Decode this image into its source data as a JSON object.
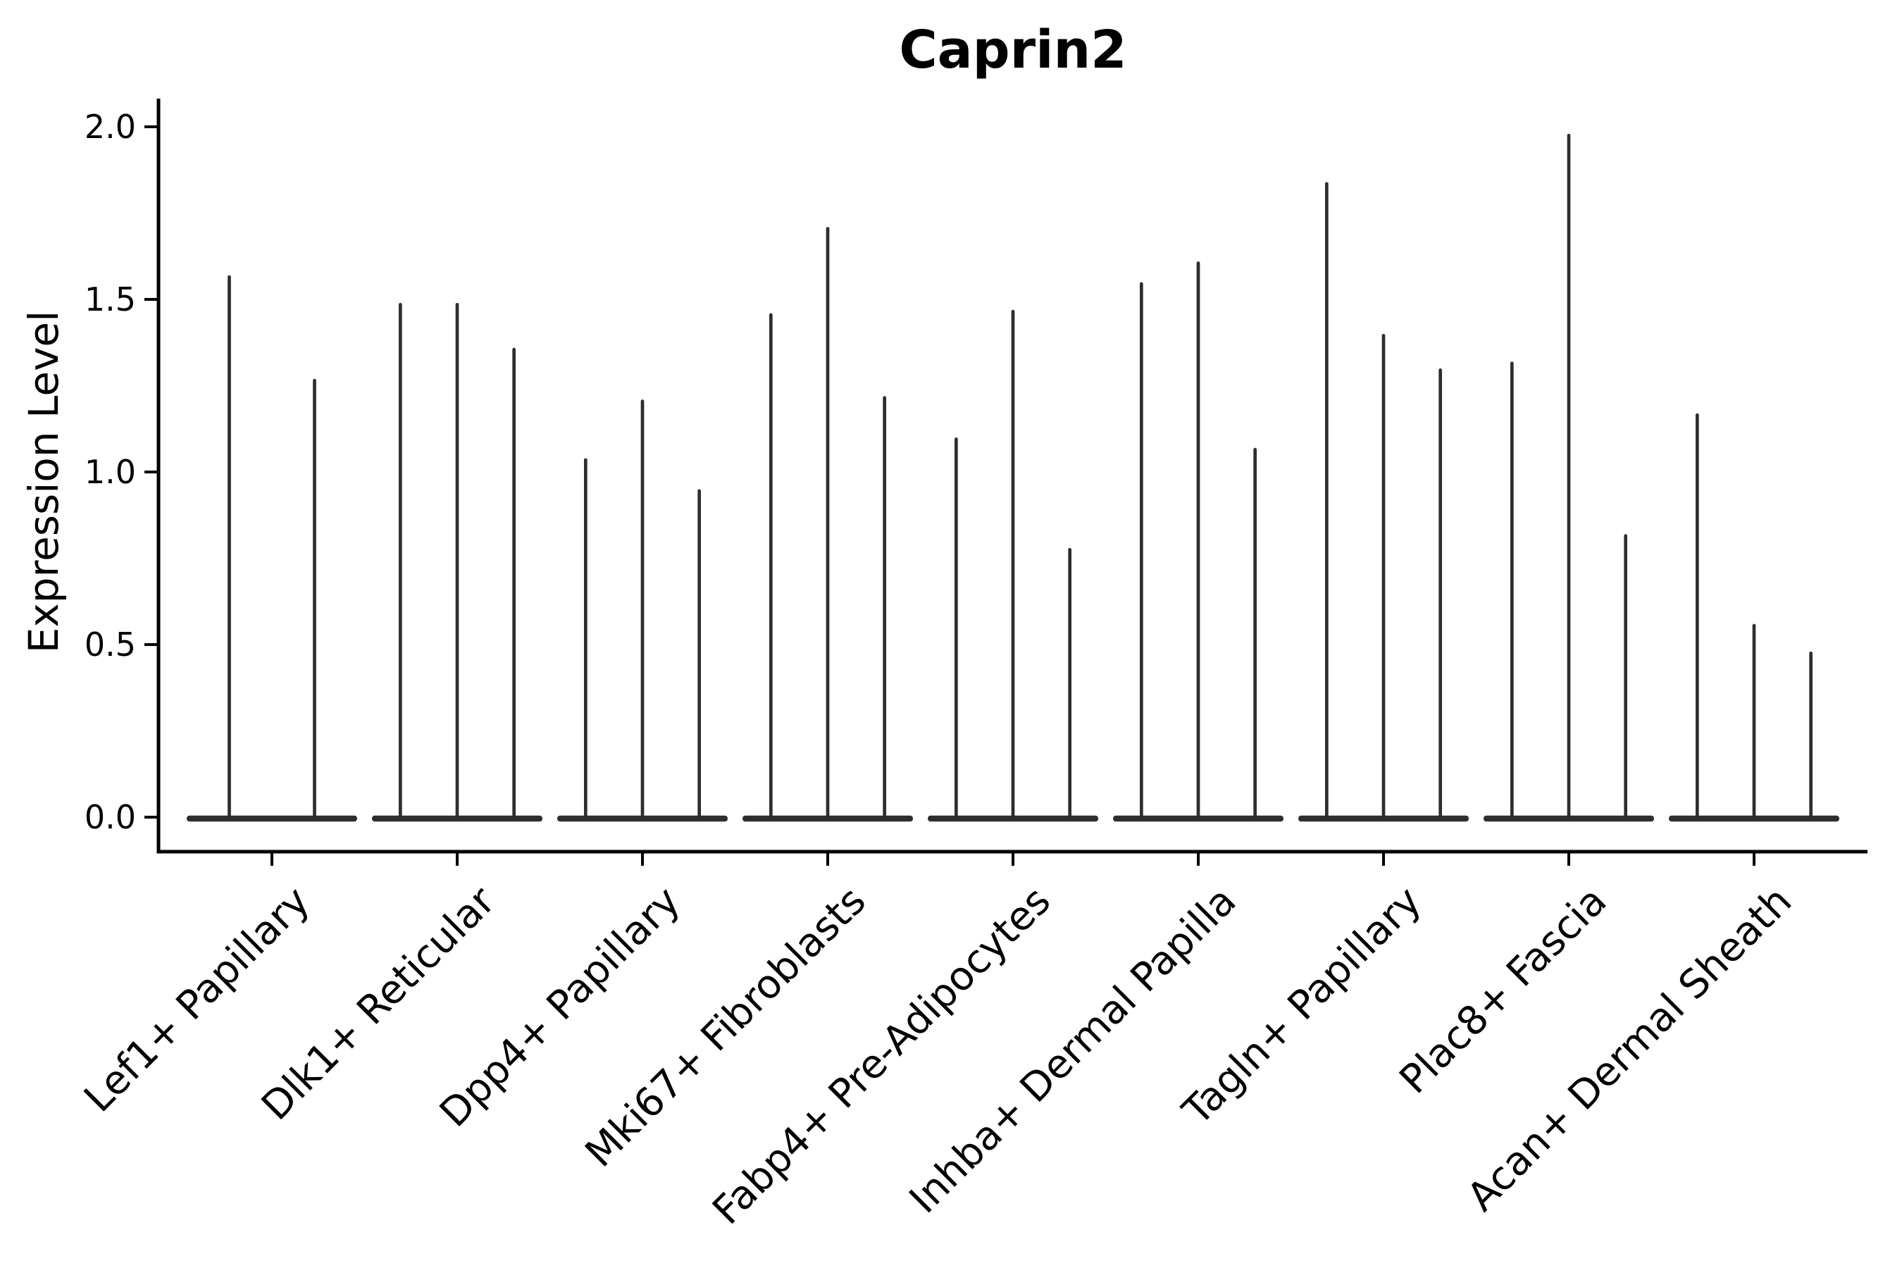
{
  "chart_data": {
    "type": "violin",
    "title": "Caprin2",
    "xlabel": "",
    "ylabel": "Expression Level",
    "ylim": [
      -0.1,
      2.08
    ],
    "yticks": [
      0.0,
      0.5,
      1.0,
      1.5,
      2.0
    ],
    "grid": false,
    "legend": "none",
    "categories": [
      "Lef1+ Papillary",
      "Dlk1+ Reticular",
      "Dpp4+ Papillary",
      "Mki67+ Fibroblasts",
      "Fabp4+ Pre-Adipocytes",
      "Inhba+ Dermal Papilla",
      "Tagln+ Papillary",
      "Plac8+ Fascia",
      "Acan+ Dermal Sheath"
    ],
    "series": [
      {
        "category": "Lef1+ Papillary",
        "violin_max_expression": [
          1.57,
          1.27
        ]
      },
      {
        "category": "Dlk1+ Reticular",
        "violin_max_expression": [
          1.49,
          1.49,
          1.36
        ]
      },
      {
        "category": "Dpp4+ Papillary",
        "violin_max_expression": [
          1.04,
          1.21,
          0.95
        ]
      },
      {
        "category": "Mki67+ Fibroblasts",
        "violin_max_expression": [
          1.46,
          1.71,
          1.22
        ]
      },
      {
        "category": "Fabp4+ Pre-Adipocytes",
        "violin_max_expression": [
          1.1,
          1.47,
          0.78
        ]
      },
      {
        "category": "Inhba+ Dermal Papilla",
        "violin_max_expression": [
          1.55,
          1.61,
          1.07
        ]
      },
      {
        "category": "Tagln+ Papillary",
        "violin_max_expression": [
          1.84,
          1.4,
          1.3
        ]
      },
      {
        "category": "Plac8+ Fascia",
        "violin_max_expression": [
          1.32,
          1.98,
          0.82
        ]
      },
      {
        "category": "Acan+ Dermal Sheath",
        "violin_max_expression": [
          1.17,
          0.56,
          0.48
        ]
      }
    ],
    "shape_note": "needle violins: density concentrated at 0 (wide flat base) with a thin spike rising to the max expression value",
    "colors": {
      "violin": "#2e2e2e",
      "axis": "#000000",
      "text": "#000000",
      "background": "#ffffff"
    }
  }
}
